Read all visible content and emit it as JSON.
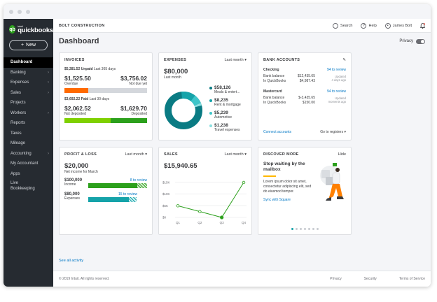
{
  "sidebar": {
    "logo_small": "intuit",
    "logo": "quickbooks",
    "new_label": "New",
    "items": [
      {
        "label": "Dashboard",
        "chevron": false
      },
      {
        "label": "Banking",
        "chevron": true
      },
      {
        "label": "Expenses",
        "chevron": true
      },
      {
        "label": "Sales",
        "chevron": true
      },
      {
        "label": "Projects",
        "chevron": false
      },
      {
        "label": "Workers",
        "chevron": true
      },
      {
        "label": "Reports",
        "chevron": false
      },
      {
        "label": "Taxes",
        "chevron": false
      },
      {
        "label": "Mileage",
        "chevron": false
      },
      {
        "label": "Accounting",
        "chevron": true
      },
      {
        "label": "My Accountant",
        "chevron": false
      },
      {
        "label": "Apps",
        "chevron": false
      },
      {
        "label": "Live Bookkeeping",
        "chevron": false
      }
    ]
  },
  "topbar": {
    "company": "BOLT CONSTRUCTION",
    "search": "Search",
    "help": "Help",
    "user": "James Bolt"
  },
  "page": {
    "title": "Dashboard",
    "privacy": "Privacy"
  },
  "invoices": {
    "title": "INVOICES",
    "unpaid_amount": "$5,281.52 Unpaid",
    "unpaid_period": "Last 365 days",
    "overdue_value": "$1,525.50",
    "overdue_label": "Overdue",
    "notdue_value": "$3,756.02",
    "notdue_label": "Not due yet",
    "overdue_fraction": 0.29,
    "paid_amount": "$3,692.22 Paid",
    "paid_period": "Last 30 days",
    "notdeposited_value": "$2,062.52",
    "notdeposited_label": "Not deposited",
    "deposited_value": "$1,629.70",
    "deposited_label": "Deposited",
    "notdeposited_fraction": 0.56
  },
  "expenses": {
    "title": "EXPENSES",
    "period": "Last month",
    "total": "$80,000",
    "total_label": "Last month",
    "items": [
      {
        "value": "$58,126",
        "label": "Meals & entert...",
        "color": "#0a7b83"
      },
      {
        "value": "$8,235",
        "label": "Rent & mortgage",
        "color": "#15a3a9"
      },
      {
        "value": "$5,239",
        "label": "Automotive",
        "color": "#3ec5c9"
      },
      {
        "value": "$1,238",
        "label": "Travel expenses",
        "color": "#8adfe0"
      }
    ]
  },
  "bank": {
    "title": "BANK ACCOUNTS",
    "accounts": [
      {
        "name": "Checking",
        "review": "94 to review",
        "bank_label": "Bank balance",
        "bank_value": "$12,435.65",
        "qb_label": "In QuickBooks",
        "qb_value": "$4,987.43",
        "updated": "Updated",
        "ago": "4 days ago"
      },
      {
        "name": "Mastercard",
        "review": "94 to review",
        "bank_label": "Bank balance",
        "bank_value": "$-3,435.65",
        "qb_label": "In QuickBooks",
        "qb_value": "$150.00",
        "updated": "Updated",
        "ago": "moments ago"
      }
    ],
    "connect": "Connect accounts",
    "goto": "Go to registers"
  },
  "profit": {
    "title": "PROFIT & LOSS",
    "period": "Last month",
    "total": "$20,000",
    "total_label": "Net income for March",
    "income_value": "$100,000",
    "income_label": "Income",
    "income_review": "8 to review",
    "expenses_value": "$80,000",
    "expenses_label": "Expenses",
    "expenses_review": "15 to review"
  },
  "sales": {
    "title": "SALES",
    "period": "Last month",
    "total": "$15,940.65"
  },
  "chart_data": {
    "type": "line",
    "categories": [
      "Q1",
      "Q2",
      "Q3",
      "Q4"
    ],
    "values": [
      5000,
      2500,
      0,
      15000
    ],
    "yticks": [
      "$15K",
      "$10K",
      "$5K",
      "$0"
    ],
    "ylim": [
      0,
      15000
    ],
    "color": "#2ca01c"
  },
  "discover": {
    "title": "DISCOVER MORE",
    "hide": "Hide",
    "headline": "Stop waiting by the mailbox",
    "body": "Lorem ipsum dolor sit amet, consectetur adipiscing elit, sed do eiusmod tempor.",
    "link": "Sync with Square"
  },
  "footer": {
    "see_all": "See all activity",
    "copyright": "© 2019 Intuit. All rights reserved.",
    "privacy": "Privacy",
    "security": "Security",
    "terms": "Terms of Service"
  }
}
